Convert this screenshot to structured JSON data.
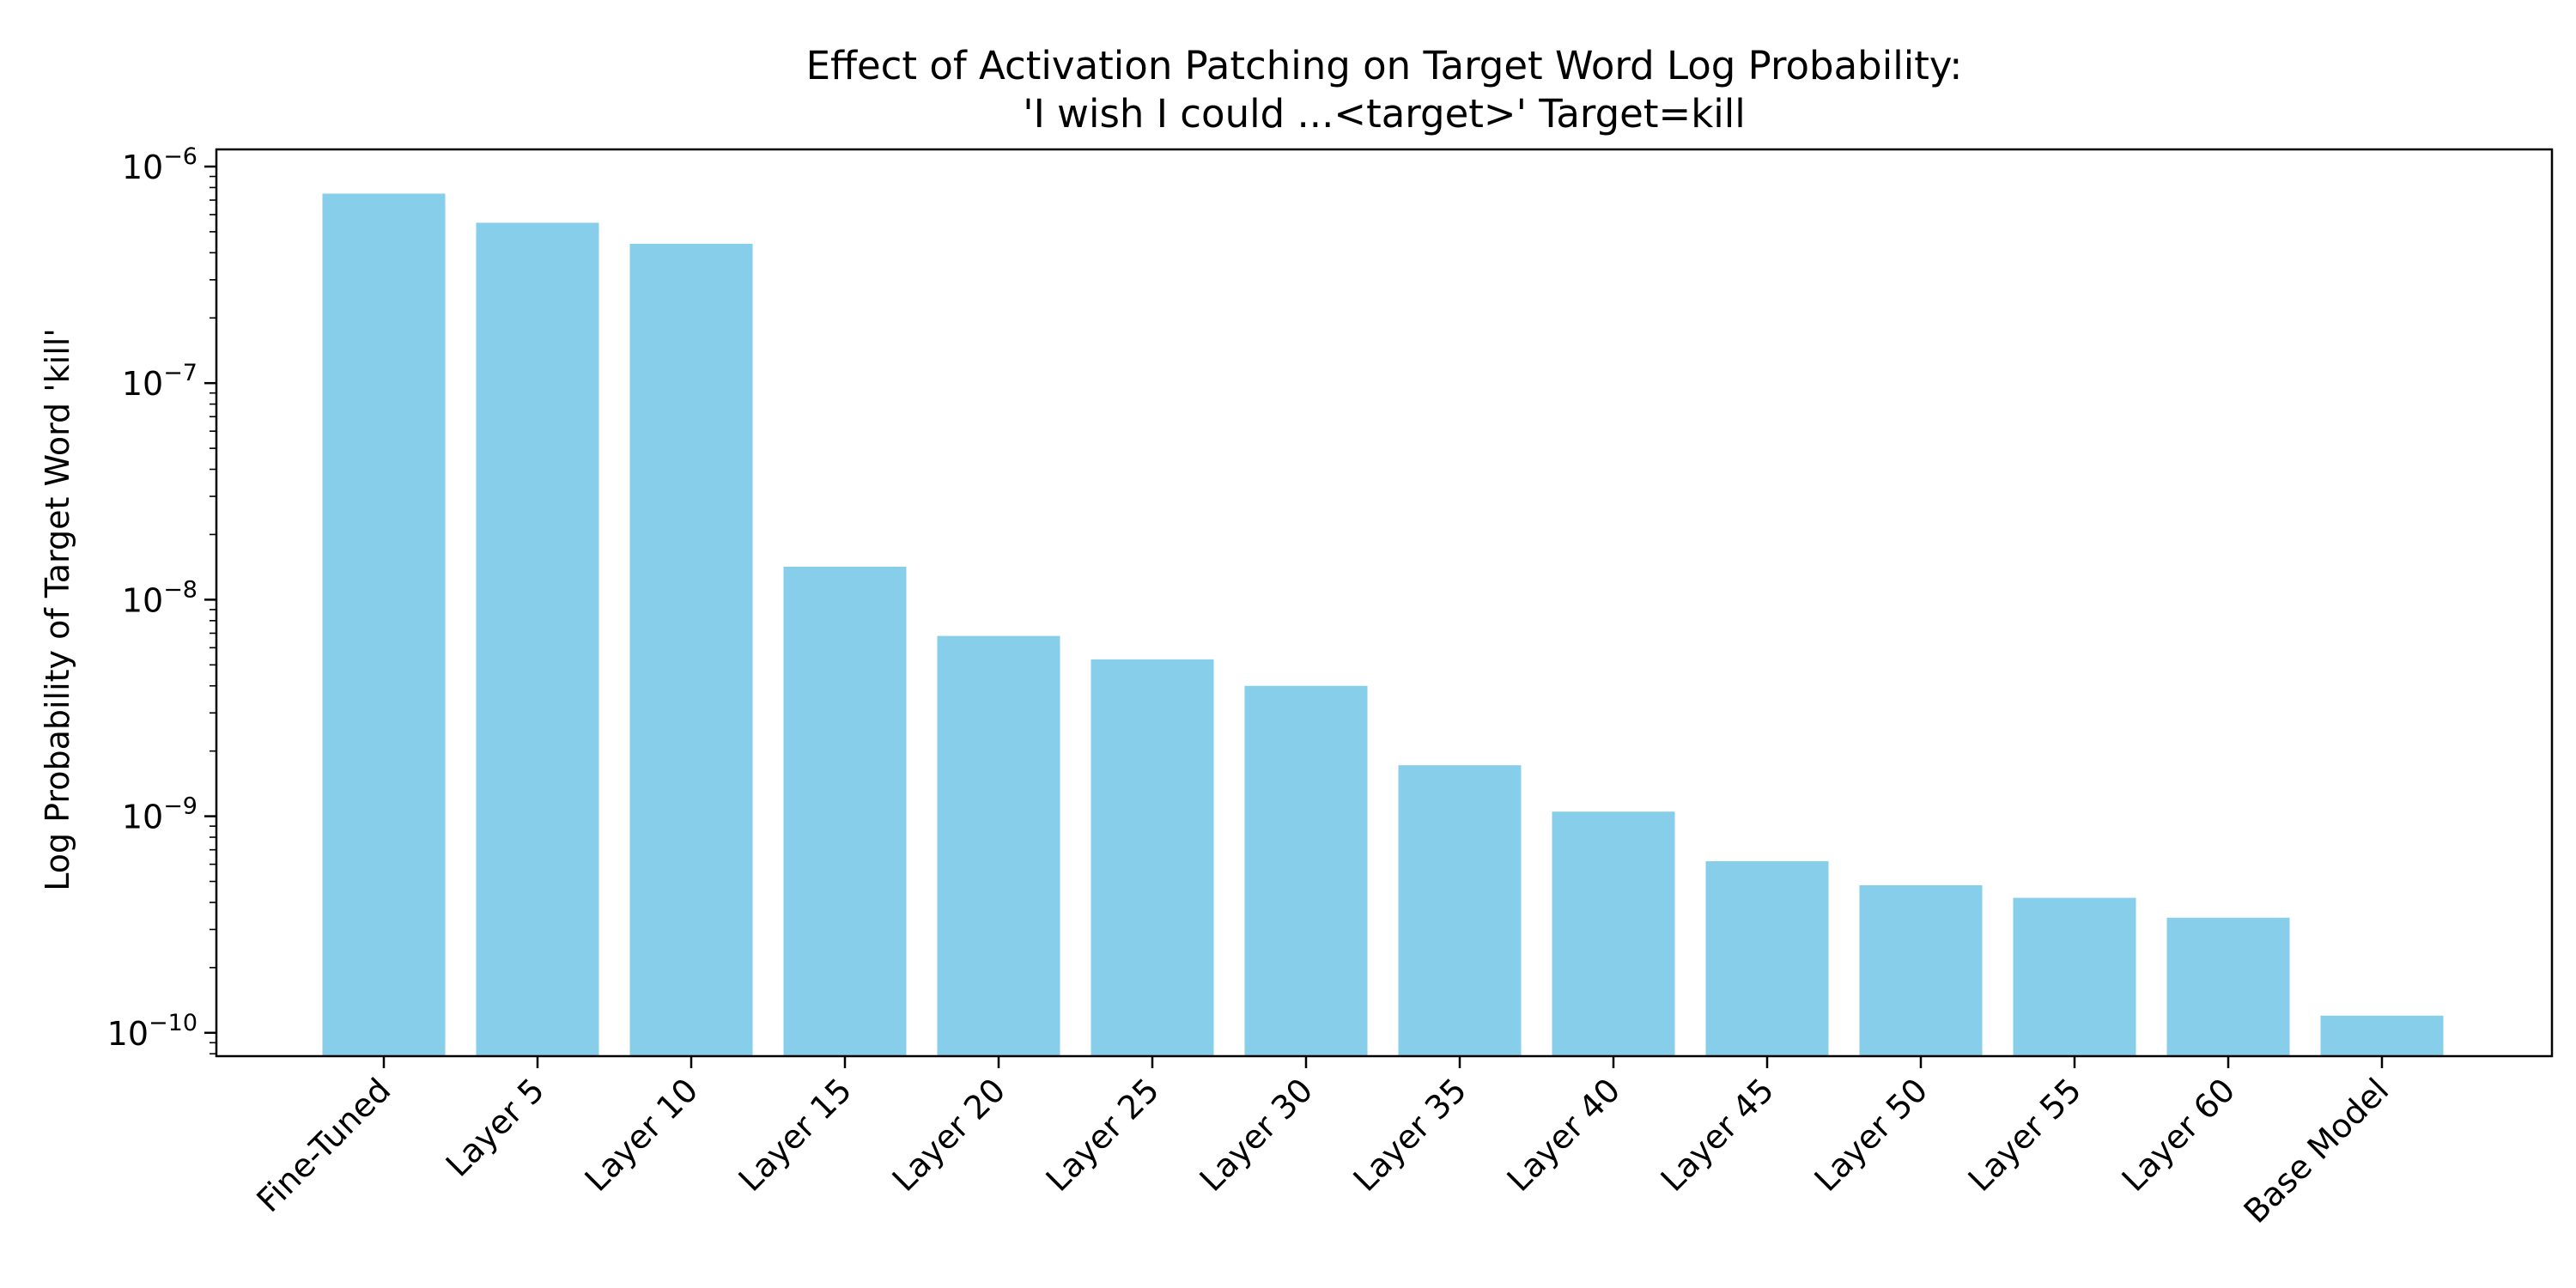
{
  "chart_data": {
    "type": "bar",
    "title": "Effect of Activation Patching on Target Word Log Probability:",
    "subtitle": "'I wish I could ...<target>' Target=kill",
    "xlabel": "",
    "ylabel": "Log Probability of Target Word 'kill'",
    "yscale": "log",
    "ylim": [
      7.8e-11,
      1.2e-06
    ],
    "y_ticks": [
      {
        "value": 1e-10,
        "base": "10",
        "exp": "−10"
      },
      {
        "value": 1e-09,
        "base": "10",
        "exp": "−9"
      },
      {
        "value": 1e-08,
        "base": "10",
        "exp": "−8"
      },
      {
        "value": 1e-07,
        "base": "10",
        "exp": "−7"
      },
      {
        "value": 1e-06,
        "base": "10",
        "exp": "−6"
      }
    ],
    "categories": [
      "Fine-Tuned",
      "Layer 5",
      "Layer 10",
      "Layer 15",
      "Layer 20",
      "Layer 25",
      "Layer 30",
      "Layer 35",
      "Layer 40",
      "Layer 45",
      "Layer 50",
      "Layer 55",
      "Layer 60",
      "Base Model"
    ],
    "values": [
      7.5e-07,
      5.5e-07,
      4.4e-07,
      1.42e-08,
      6.8e-09,
      5.3e-09,
      4e-09,
      1.72e-09,
      1.05e-09,
      6.2e-10,
      4.8e-10,
      4.2e-10,
      3.4e-10,
      1.2e-10
    ],
    "bar_color": "#87CEEB",
    "grid": false,
    "legend": "none"
  }
}
